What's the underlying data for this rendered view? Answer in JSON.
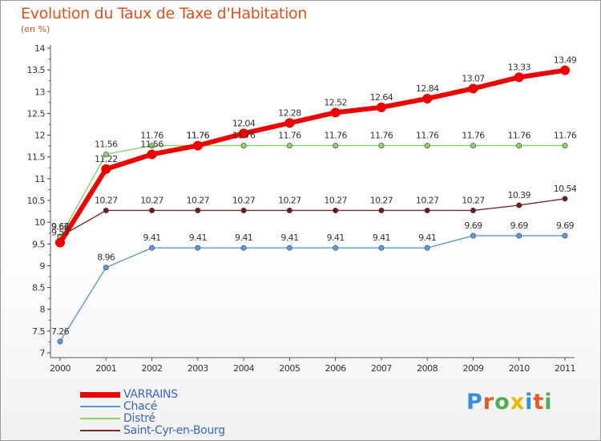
{
  "title": "Evolution du Taux de Taxe d'Habitation",
  "subtitle": "(en %)",
  "logo": {
    "text": "Proxiti",
    "colors": [
      "#3a8fd9",
      "#e65a1e",
      "#4caf50",
      "#e6b800",
      "#3a8fd9",
      "#e65a1e",
      "#4caf50"
    ]
  },
  "chart_data": {
    "type": "line",
    "title": "Evolution du Taux de Taxe d'Habitation",
    "subtitle": "(en %)",
    "x": [
      "2000",
      "2001",
      "2002",
      "2003",
      "2004",
      "2005",
      "2006",
      "2007",
      "2008",
      "2009",
      "2010",
      "2011"
    ],
    "ylim": [
      7,
      14
    ],
    "yticks": [
      "7",
      "7.5",
      "8",
      "8.5",
      "9",
      "9.5",
      "10",
      "10.5",
      "11",
      "11.5",
      "12",
      "12.5",
      "13",
      "13.5",
      "14"
    ],
    "grid": false,
    "legend": "bottom-left",
    "series": [
      {
        "name": "VARRAINS",
        "color": "#ee0000",
        "values": [
          9.53,
          11.22,
          11.56,
          11.76,
          12.04,
          12.28,
          12.52,
          12.64,
          12.84,
          13.07,
          13.33,
          13.49
        ],
        "labels": [
          "9.53",
          "11.22",
          "11.56",
          "11.76",
          "12.04",
          "12.28",
          "12.52",
          "12.64",
          "12.84",
          "13.07",
          "13.33",
          "13.49"
        ]
      },
      {
        "name": "Chacé",
        "color": "#5a9bd5",
        "values": [
          7.26,
          8.96,
          9.41,
          9.41,
          9.41,
          9.41,
          9.41,
          9.41,
          9.41,
          9.69,
          9.69,
          9.69
        ],
        "labels": [
          "7.26",
          "8.96",
          "9.41",
          "9.41",
          "9.41",
          "9.41",
          "9.41",
          "9.41",
          "9.41",
          "9.69",
          "9.69",
          "9.69"
        ]
      },
      {
        "name": "Distré",
        "color": "#8ed16a",
        "values": [
          9.66,
          11.56,
          11.76,
          11.76,
          11.76,
          11.76,
          11.76,
          11.76,
          11.76,
          11.76,
          11.76,
          11.76
        ],
        "labels": [
          "9.66",
          "11.56",
          "11.76",
          "11.76",
          "11.76",
          "11.76",
          "11.76",
          "11.76",
          "11.76",
          "11.76",
          "11.76",
          "11.76"
        ]
      },
      {
        "name": "Saint-Cyr-en-Bourg",
        "color": "#7a2a2a",
        "values": [
          9.67,
          10.27,
          10.27,
          10.27,
          10.27,
          10.27,
          10.27,
          10.27,
          10.27,
          10.27,
          10.39,
          10.54
        ],
        "labels": [
          "9.67",
          "10.27",
          "10.27",
          "10.27",
          "10.27",
          "10.27",
          "10.27",
          "10.27",
          "10.27",
          "10.27",
          "10.39",
          "10.54"
        ]
      }
    ]
  }
}
